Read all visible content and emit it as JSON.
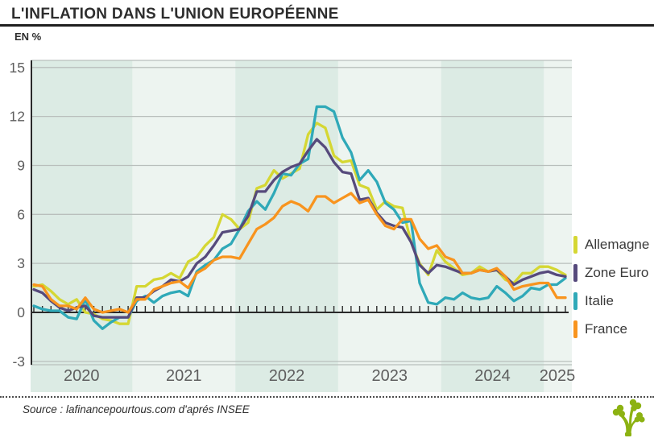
{
  "header": {
    "title": "L'INFLATION DANS L'UNION EUROPÉENNE",
    "unit_label": "EN %"
  },
  "footer": {
    "source": "Source : lafinancepourtous.com d'aprés INSEE",
    "logo_icon": "tree-logo"
  },
  "legend": [
    {
      "label": "Allemagne",
      "color": "#d5d733"
    },
    {
      "label": "Zone Euro",
      "color": "#564a7c"
    },
    {
      "label": "Italie",
      "color": "#2fa9b8"
    },
    {
      "label": "France",
      "color": "#f8941e"
    }
  ],
  "colors": {
    "band_dark": "#dcebe4",
    "band_light": "#edf4f0",
    "gridline": "#b9bfbc",
    "axis_dark": "#2a2a2a",
    "tick_label": "#5e5e5e",
    "logo_green": "#8cb212"
  },
  "chart_data": {
    "type": "line",
    "title": "L'INFLATION DANS L'UNION EUROPÉENNE",
    "ylabel": "EN %",
    "xlabel": "",
    "frequency": "monthly",
    "x_start": "2020-01",
    "x_end": "2025-03",
    "year_labels": [
      "2020",
      "2021",
      "2022",
      "2023",
      "2024",
      "2025"
    ],
    "yticks": [
      15,
      12,
      9,
      6,
      3,
      0,
      -3
    ],
    "ylim": [
      -3,
      15
    ],
    "grid": true,
    "legend_position": "right",
    "series": [
      {
        "name": "Allemagne",
        "color": "#d5d733",
        "values": [
          1.6,
          1.7,
          1.3,
          0.8,
          0.5,
          0.8,
          0.0,
          -0.1,
          -0.4,
          -0.5,
          -0.7,
          -0.7,
          1.6,
          1.6,
          2.0,
          2.1,
          2.4,
          2.1,
          3.1,
          3.4,
          4.1,
          4.6,
          6.0,
          5.7,
          5.1,
          5.5,
          7.6,
          7.8,
          8.7,
          8.2,
          8.5,
          8.8,
          10.9,
          11.6,
          11.3,
          9.6,
          9.2,
          9.3,
          7.8,
          7.6,
          6.3,
          6.8,
          6.5,
          6.4,
          4.3,
          3.0,
          2.3,
          3.8,
          3.1,
          2.7,
          2.3,
          2.4,
          2.8,
          2.5,
          2.6,
          2.0,
          1.8,
          2.4,
          2.4,
          2.8,
          2.8,
          2.6,
          2.3
        ]
      },
      {
        "name": "Zone Euro",
        "color": "#564a7c",
        "values": [
          1.4,
          1.2,
          0.7,
          0.3,
          0.1,
          0.3,
          0.4,
          -0.2,
          -0.3,
          -0.3,
          -0.3,
          -0.3,
          0.9,
          0.9,
          1.3,
          1.6,
          2.0,
          1.9,
          2.2,
          3.0,
          3.4,
          4.1,
          4.9,
          5.0,
          5.1,
          5.9,
          7.4,
          7.4,
          8.1,
          8.6,
          8.9,
          9.1,
          9.9,
          10.6,
          10.1,
          9.2,
          8.6,
          8.5,
          6.9,
          7.0,
          6.1,
          5.5,
          5.3,
          5.2,
          4.3,
          2.9,
          2.4,
          2.9,
          2.8,
          2.6,
          2.4,
          2.4,
          2.6,
          2.5,
          2.6,
          2.2,
          1.7,
          2.0,
          2.2,
          2.4,
          2.5,
          2.3,
          2.2
        ]
      },
      {
        "name": "Italie",
        "color": "#2fa9b8",
        "values": [
          0.4,
          0.2,
          0.1,
          0.1,
          -0.3,
          -0.4,
          0.8,
          -0.5,
          -1.0,
          -0.6,
          -0.3,
          -0.3,
          0.7,
          1.0,
          0.6,
          1.0,
          1.2,
          1.3,
          1.0,
          2.5,
          2.9,
          3.2,
          3.9,
          4.2,
          5.1,
          6.2,
          6.8,
          6.3,
          7.3,
          8.5,
          8.4,
          9.1,
          9.4,
          12.6,
          12.6,
          12.3,
          10.7,
          9.8,
          8.1,
          8.7,
          8.0,
          6.7,
          6.3,
          5.5,
          5.6,
          1.8,
          0.6,
          0.5,
          0.9,
          0.8,
          1.2,
          0.9,
          0.8,
          0.9,
          1.6,
          1.2,
          0.7,
          1.0,
          1.5,
          1.4,
          1.7,
          1.7,
          2.1
        ]
      },
      {
        "name": "France",
        "color": "#f8941e",
        "values": [
          1.7,
          1.6,
          0.8,
          0.4,
          0.4,
          0.2,
          0.9,
          0.2,
          0.0,
          0.1,
          0.2,
          0.0,
          0.8,
          0.8,
          1.4,
          1.6,
          1.8,
          1.9,
          1.5,
          2.4,
          2.7,
          3.2,
          3.4,
          3.4,
          3.3,
          4.2,
          5.1,
          5.4,
          5.8,
          6.5,
          6.8,
          6.6,
          6.2,
          7.1,
          7.1,
          6.7,
          7.0,
          7.3,
          6.7,
          6.9,
          6.0,
          5.3,
          5.1,
          5.7,
          5.7,
          4.5,
          3.9,
          4.1,
          3.4,
          3.2,
          2.4,
          2.4,
          2.6,
          2.5,
          2.7,
          2.2,
          1.4,
          1.6,
          1.7,
          1.8,
          1.8,
          0.9,
          0.9
        ]
      }
    ]
  }
}
